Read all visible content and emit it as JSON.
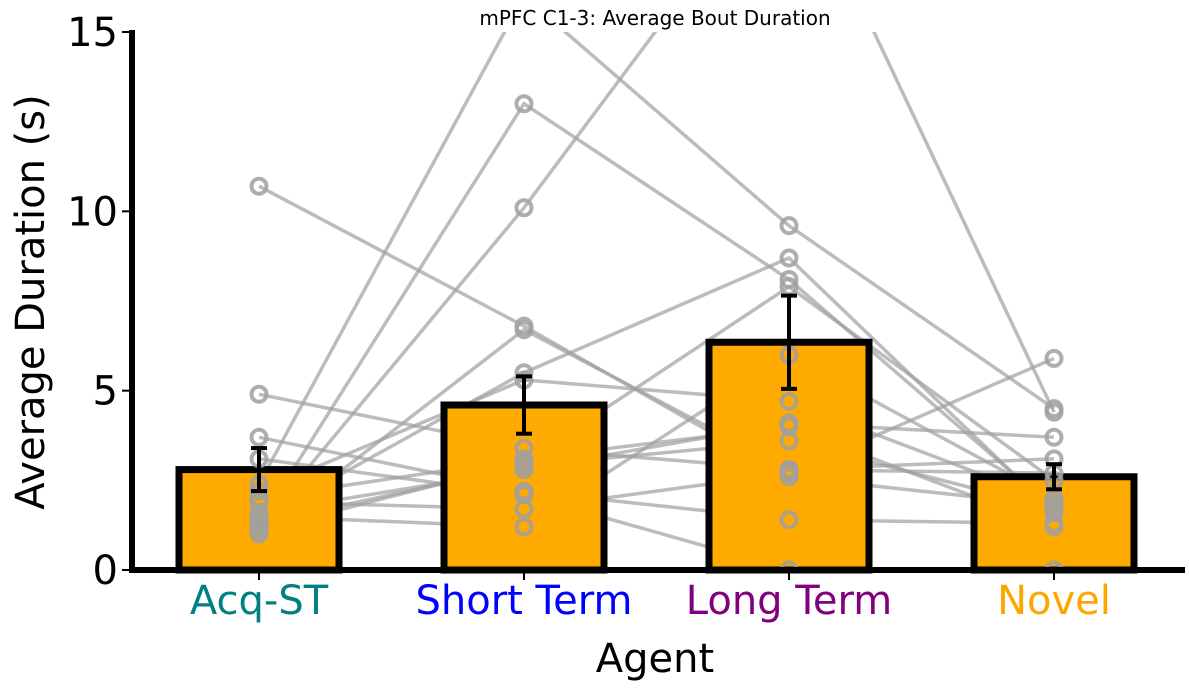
{
  "chart_data": {
    "type": "bar",
    "title": "mPFC C1-3: Average Bout Duration",
    "xlabel": "Agent",
    "ylabel": "Average Duration (s)",
    "ylim": [
      0,
      15
    ],
    "yticks": [
      0,
      5,
      10,
      15
    ],
    "categories": [
      "Acq-ST",
      "Short Term",
      "Long Term",
      "Novel"
    ],
    "category_colors": [
      "#008080",
      "#0000ff",
      "#800080",
      "#ffa500"
    ],
    "bar_color": "#ffaa00",
    "values": [
      2.8,
      4.6,
      6.35,
      2.6
    ],
    "errors": [
      0.6,
      0.8,
      1.3,
      0.35
    ],
    "subjects": [
      [
        1.3,
        13.0,
        8.1,
        1.7
      ],
      [
        10.7,
        6.8,
        2.6,
        1.8
      ],
      [
        1.2,
        10.1,
        20.0,
        4.4
      ],
      [
        1.0,
        6.7,
        2.8,
        3.1
      ],
      [
        1.4,
        5.5,
        8.7,
        1.6
      ],
      [
        2.0,
        3.1,
        4.0,
        1.2
      ],
      [
        4.9,
        3.4,
        2.8,
        2.7
      ],
      [
        3.7,
        2.2,
        1.4,
        1.3
      ],
      [
        1.5,
        1.2,
        6.0,
        2.0
      ],
      [
        3.1,
        2.1,
        0.0,
        0.0
      ],
      [
        1.9,
        1.7,
        2.7,
        5.9
      ],
      [
        2.4,
        16.0,
        9.6,
        4.5
      ],
      [
        1.6,
        2.8,
        4.1,
        3.7
      ],
      [
        1.3,
        2.9,
        3.6,
        1.7
      ],
      [
        1.1,
        3.0,
        7.9,
        2.5
      ],
      [
        2.2,
        5.3,
        4.7,
        1.9
      ]
    ],
    "grid": false,
    "legend": "none"
  }
}
